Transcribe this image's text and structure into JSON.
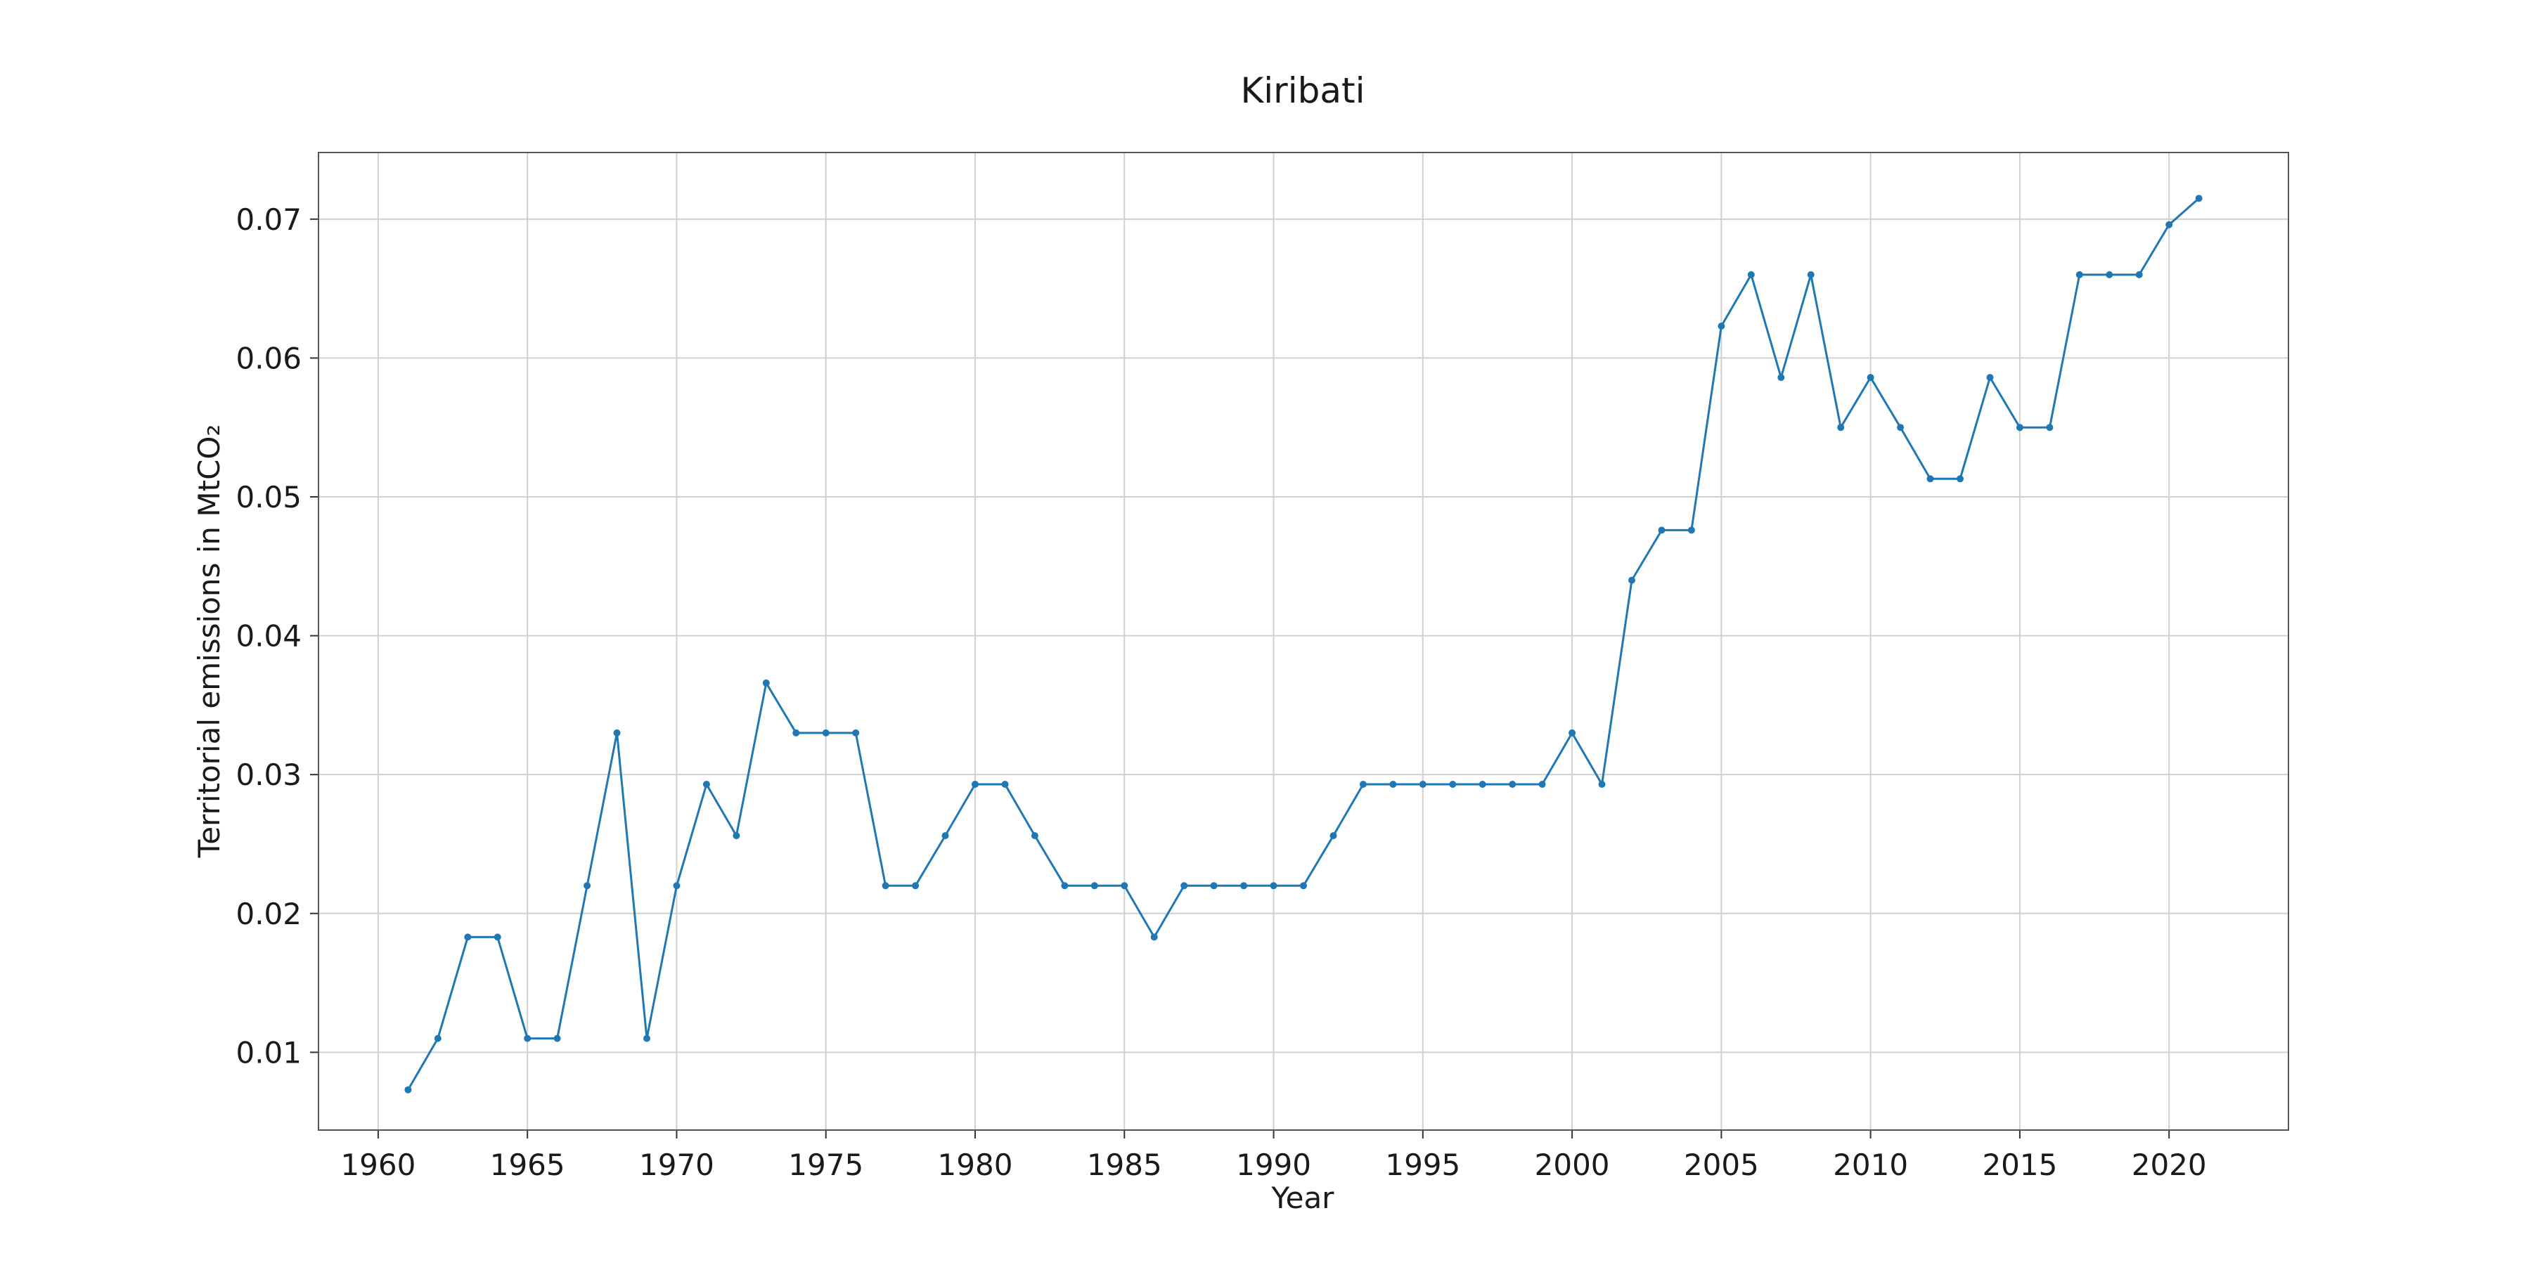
{
  "chart_data": {
    "type": "line",
    "title": "Kiribati",
    "xlabel": "Year",
    "ylabel": "Territorial emissions in MtCO₂",
    "xlim": [
      1958,
      2024
    ],
    "ylim": [
      0.0044,
      0.0748
    ],
    "xticks": [
      1960,
      1965,
      1970,
      1975,
      1980,
      1985,
      1990,
      1995,
      2000,
      2005,
      2010,
      2015,
      2020
    ],
    "yticks": [
      0.01,
      0.02,
      0.03,
      0.04,
      0.05,
      0.06,
      0.07
    ],
    "ytick_labels": [
      "0.01",
      "0.02",
      "0.03",
      "0.04",
      "0.05",
      "0.06",
      "0.07"
    ],
    "grid": true,
    "legend": "none",
    "color": "#1f77b4",
    "series": [
      {
        "x": [
          1961,
          1962,
          1963,
          1964,
          1965,
          1966,
          1967,
          1968,
          1969,
          1970,
          1971,
          1972,
          1973,
          1974,
          1975,
          1976,
          1977,
          1978,
          1979,
          1980,
          1981,
          1982,
          1983,
          1984,
          1985,
          1986,
          1987,
          1988,
          1989,
          1990,
          1991,
          1992,
          1993,
          1994,
          1995,
          1996,
          1997,
          1998,
          1999,
          2000,
          2001,
          2002,
          2003,
          2004,
          2005,
          2006,
          2007,
          2008,
          2009,
          2010,
          2011,
          2012,
          2013,
          2014,
          2015,
          2016,
          2017,
          2018,
          2019,
          2020,
          2021
        ],
        "y": [
          0.0073,
          0.011,
          0.0183,
          0.0183,
          0.011,
          0.011,
          0.022,
          0.033,
          0.011,
          0.022,
          0.0293,
          0.0256,
          0.0366,
          0.033,
          0.033,
          0.033,
          0.022,
          0.022,
          0.0256,
          0.0293,
          0.0293,
          0.0256,
          0.022,
          0.022,
          0.022,
          0.0183,
          0.022,
          0.022,
          0.022,
          0.022,
          0.022,
          0.0256,
          0.0293,
          0.0293,
          0.0293,
          0.0293,
          0.0293,
          0.0293,
          0.0293,
          0.033,
          0.0293,
          0.044,
          0.0476,
          0.0476,
          0.0623,
          0.066,
          0.0586,
          0.066,
          0.055,
          0.0586,
          0.055,
          0.0513,
          0.0513,
          0.0586,
          0.055,
          0.055,
          0.066,
          0.066,
          0.066,
          0.0696,
          0.0715
        ]
      }
    ]
  }
}
